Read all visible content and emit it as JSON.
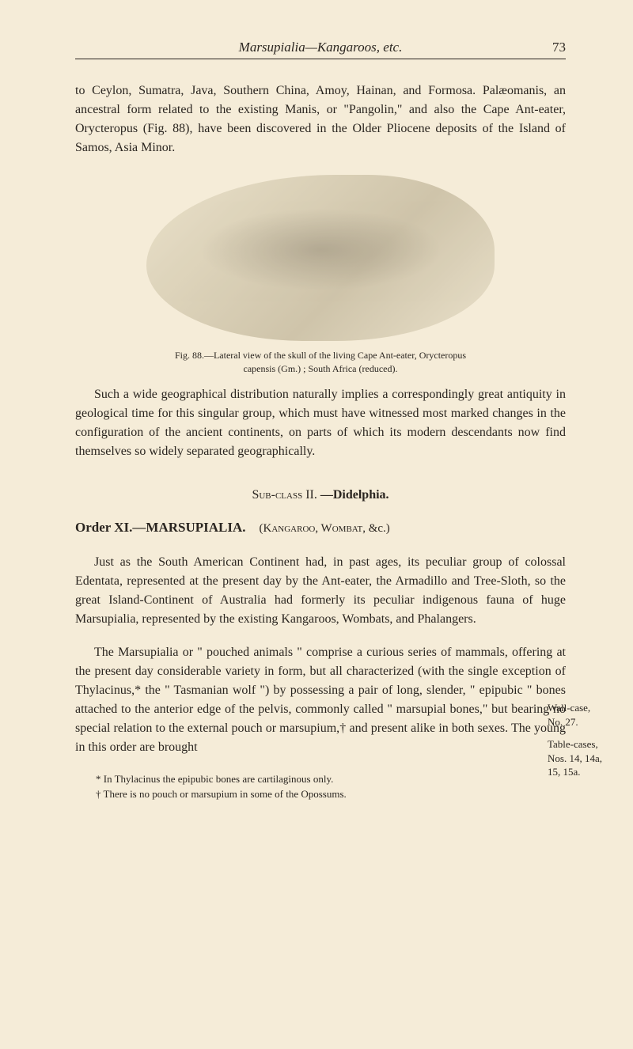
{
  "header": {
    "title": "Marsupialia—Kangaroos, etc.",
    "page_number": "73"
  },
  "para1": {
    "text": "to Ceylon, Sumatra, Java, Southern China, Amoy, Hainan, and Formosa. Palæomanis, an ancestral form related to the existing Manis, or \"Pangolin,\" and also the Cape Ant-eater, Orycteropus (Fig. 88), have been discovered in the Older Pliocene deposits of the Island of Samos, Asia Minor."
  },
  "figure": {
    "caption_line1": "Fig. 88.—Lateral view of the skull of the living Cape Ant-eater, Orycteropus",
    "caption_line2": "capensis (Gm.) ; South Africa (reduced)."
  },
  "para2": {
    "text": "Such a wide geographical distribution naturally implies a correspondingly great antiquity in geological time for this singular group, which must have witnessed most marked changes in the configuration of the ancient continents, on parts of which its modern descendants now find themselves so widely separated geographically."
  },
  "subclass": {
    "prefix": "Sub-class",
    "roman": "II.",
    "name": "—Didelphia."
  },
  "order": {
    "label": "Order XI.—MARSUPIALIA.",
    "contents_prefix": "(",
    "contents": "Kangaroo, Wombat,",
    "contents_suffix": " &c.)"
  },
  "para3": {
    "text": "Just as the South American Continent had, in past ages, its peculiar group of colossal Edentata, represented at the present day by the Ant-eater, the Armadillo and Tree-Sloth, so the great Island-Continent of Australia had formerly its peculiar indigenous fauna of huge Marsupialia, represented by the existing Kangaroos, Wombats, and Phalangers."
  },
  "para4": {
    "text": "The Marsupialia or \" pouched animals \" comprise a curious series of mammals, offering at the present day considerable variety in form, but all characterized (with the single exception of Thylacinus,* the \" Tasmanian wolf \") by possessing a pair of long, slender, \" epipubic \" bones attached to the anterior edge of the pelvis, commonly called \" marsupial bones,\" but bearing no special relation to the external pouch or marsupium,† and present alike in both sexes. The young in this order are brought"
  },
  "footnotes": {
    "fn1": "* In Thylacinus the epipubic bones are cartilaginous only.",
    "fn2": "† There is no pouch or marsupium in some of the Opossums."
  },
  "margin_notes": {
    "note1_line1": "Wall-case,",
    "note1_line2": "No. 27.",
    "note2_line1": "Table-cases,",
    "note2_line2": "Nos. 14, 14a,",
    "note2_line3": "15, 15a."
  }
}
